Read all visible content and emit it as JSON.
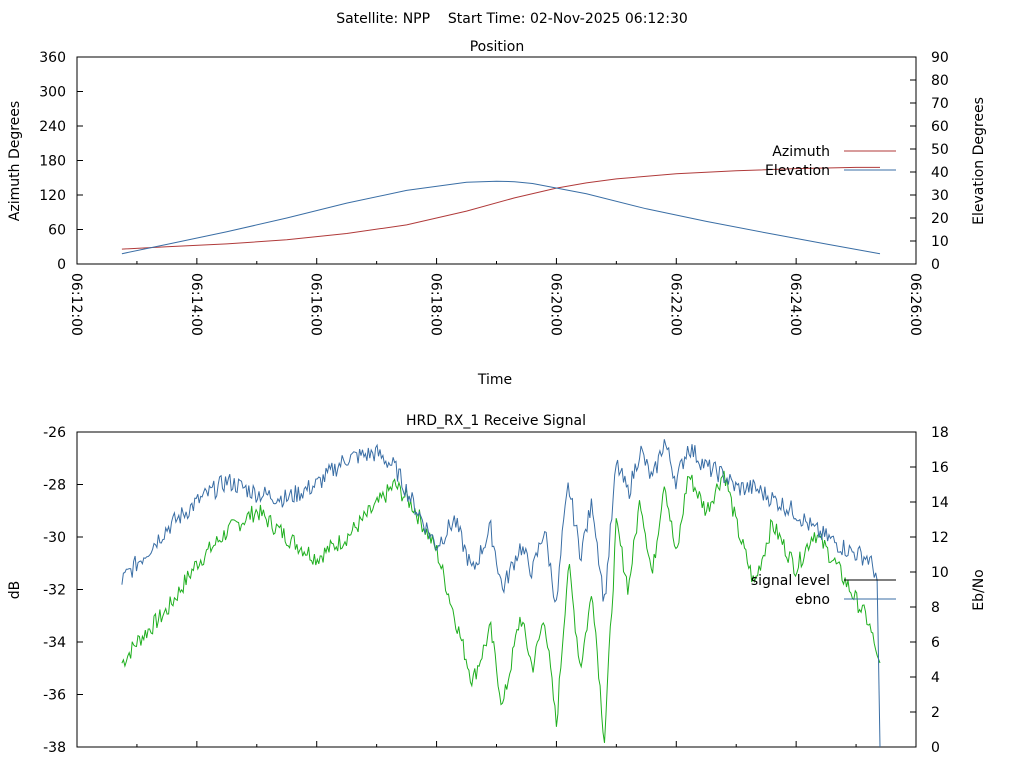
{
  "header": {
    "title": "Satellite: NPP    Start Time: 02-Nov-2025 06:12:30"
  },
  "colors": {
    "azimuth": "#b03a3a",
    "elevation": "#3a6ea5",
    "signal_level": "#1faf1f",
    "ebno": "#3a6ea5",
    "legend_signal_sample": "#000000"
  },
  "chart_data": [
    {
      "type": "line",
      "title": "Position",
      "xlabel": "Time",
      "ylabel": "Azimuth Degrees",
      "y2label": "Elevation Degrees",
      "x_ticks": [
        "06:12:00",
        "06:14:00",
        "06:16:00",
        "06:18:00",
        "06:20:00",
        "06:22:00",
        "06:24:00",
        "06:26:00"
      ],
      "xlim_minutes": [
        0,
        14
      ],
      "ylim": [
        0,
        360
      ],
      "y2lim": [
        0,
        90
      ],
      "y_ticks": [
        0,
        60,
        120,
        180,
        240,
        300,
        360
      ],
      "y2_ticks": [
        0,
        10,
        20,
        30,
        40,
        50,
        60,
        70,
        80,
        90
      ],
      "legend_position": "right",
      "series": [
        {
          "name": "Azimuth",
          "axis": "left",
          "x_minutes": [
            0.75,
            1.5,
            2.5,
            3.5,
            4.5,
            5.5,
            6.5,
            7.3,
            8.0,
            8.5,
            9.0,
            10.0,
            11.0,
            12.0,
            13.0,
            13.4
          ],
          "values": [
            26,
            30,
            35,
            42,
            53,
            68,
            92,
            115,
            132,
            141,
            148,
            157,
            162,
            166,
            168,
            168
          ]
        },
        {
          "name": "Elevation",
          "axis": "right",
          "x_minutes": [
            0.75,
            1.5,
            2.5,
            3.5,
            4.5,
            5.5,
            6.5,
            7.0,
            7.3,
            7.6,
            8.5,
            9.5,
            10.5,
            11.5,
            12.5,
            13.4
          ],
          "values": [
            4.5,
            8.5,
            14,
            20,
            26.5,
            32,
            35.5,
            36,
            35.8,
            35,
            30.5,
            24,
            18.5,
            13.5,
            8.7,
            4.5
          ]
        }
      ]
    },
    {
      "type": "line",
      "title": "HRD_RX_1 Receive Signal",
      "xlabel": "",
      "ylabel": "dB",
      "y2label": "Eb/No",
      "ylim": [
        -38,
        -26
      ],
      "y2lim": [
        0,
        18
      ],
      "y_ticks": [
        -38,
        -36,
        -34,
        -32,
        -30,
        -28,
        -26
      ],
      "y2_ticks": [
        0,
        2,
        4,
        6,
        8,
        10,
        12,
        14,
        16,
        18
      ],
      "legend_position": "right",
      "series": [
        {
          "name": "signal level",
          "axis": "left",
          "x_minutes": [
            0.75,
            1.0,
            1.5,
            2.0,
            2.5,
            3.0,
            3.5,
            4.0,
            4.5,
            5.0,
            5.3,
            5.6,
            6.0,
            6.3,
            6.6,
            6.9,
            7.1,
            7.4,
            7.6,
            7.8,
            8.0,
            8.1,
            8.2,
            8.4,
            8.6,
            8.8,
            9.0,
            9.2,
            9.4,
            9.6,
            9.8,
            10.0,
            10.2,
            10.5,
            10.8,
            11.0,
            11.3,
            11.6,
            12.0,
            12.3,
            12.6,
            12.9,
            13.2,
            13.35,
            13.4
          ],
          "values": [
            -34.8,
            -34,
            -32.8,
            -31,
            -29.8,
            -29,
            -30,
            -30.8,
            -30,
            -28.8,
            -28,
            -28.8,
            -30.5,
            -33,
            -35.5,
            -33.5,
            -36.5,
            -33,
            -35,
            -33,
            -37.2,
            -34,
            -31,
            -35,
            -32,
            -37.8,
            -29.5,
            -32,
            -28.5,
            -31.5,
            -27.8,
            -30.8,
            -27.6,
            -29,
            -27.5,
            -29.5,
            -31.8,
            -29.5,
            -31.2,
            -29.8,
            -30.8,
            -32,
            -33.2,
            -34.5,
            -34.8
          ]
        },
        {
          "name": "ebno",
          "axis": "right",
          "x_minutes": [
            0.75,
            1.0,
            1.5,
            2.0,
            2.5,
            3.0,
            3.5,
            4.0,
            4.5,
            5.0,
            5.3,
            5.6,
            6.0,
            6.3,
            6.6,
            6.9,
            7.1,
            7.4,
            7.6,
            7.8,
            8.0,
            8.1,
            8.2,
            8.4,
            8.6,
            8.8,
            9.0,
            9.2,
            9.4,
            9.6,
            9.8,
            10.0,
            10.2,
            10.5,
            10.8,
            11.0,
            11.3,
            11.6,
            12.0,
            12.3,
            12.6,
            12.9,
            13.2,
            13.35,
            13.4
          ],
          "values": [
            9.5,
            10.5,
            12.5,
            14,
            15.2,
            14.5,
            14.2,
            15,
            16.5,
            16.8,
            16,
            14,
            11.5,
            13,
            10,
            12.5,
            9,
            11.5,
            10,
            12.5,
            8,
            12,
            15,
            11,
            14,
            8.2,
            16.2,
            14.5,
            17,
            15.2,
            17.5,
            15.2,
            17.2,
            16,
            15.5,
            14.8,
            14.8,
            14.2,
            13.4,
            12.4,
            11.8,
            11.2,
            10.8,
            9.8,
            0
          ]
        }
      ]
    }
  ],
  "legend_labels": {
    "azimuth": "Azimuth",
    "elevation": "Elevation",
    "signal_level": "signal level",
    "ebno": "ebno"
  }
}
